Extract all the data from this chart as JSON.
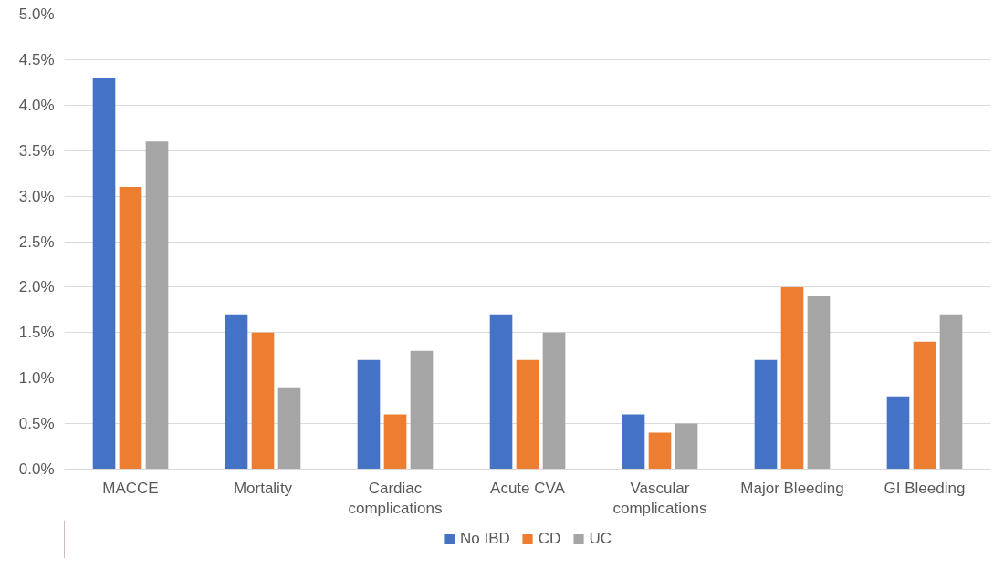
{
  "chart_data": {
    "type": "bar",
    "categories": [
      "MACCE",
      "Mortality",
      "Cardiac complications",
      "Acute CVA",
      "Vascular complications",
      "Major Bleeding",
      "GI Bleeding"
    ],
    "series": [
      {
        "name": "No IBD",
        "color": "#4472c4",
        "values": [
          4.3,
          1.7,
          1.2,
          1.7,
          0.6,
          1.2,
          0.8
        ]
      },
      {
        "name": "CD",
        "color": "#ed7d31",
        "values": [
          3.1,
          1.5,
          0.6,
          1.2,
          0.4,
          2.0,
          1.4
        ]
      },
      {
        "name": "UC",
        "color": "#a5a5a5",
        "values": [
          3.6,
          0.9,
          1.3,
          1.5,
          0.5,
          1.9,
          1.7
        ]
      }
    ],
    "ylim": [
      0,
      5
    ],
    "yticks": [
      {
        "value": 0,
        "label": "0.0%"
      },
      {
        "value": 0.5,
        "label": "0.5%"
      },
      {
        "value": 1,
        "label": "1.0%"
      },
      {
        "value": 1.5,
        "label": "1.5%"
      },
      {
        "value": 2,
        "label": "2.0%"
      },
      {
        "value": 2.5,
        "label": "2.5%"
      },
      {
        "value": 3,
        "label": "3.0%"
      },
      {
        "value": 3.5,
        "label": "3.5%"
      },
      {
        "value": 4,
        "label": "4.0%"
      },
      {
        "value": 4.5,
        "label": "4.5%"
      },
      {
        "value": 5,
        "label": "5.0%"
      }
    ],
    "grid": "y",
    "legend": "bottom"
  }
}
